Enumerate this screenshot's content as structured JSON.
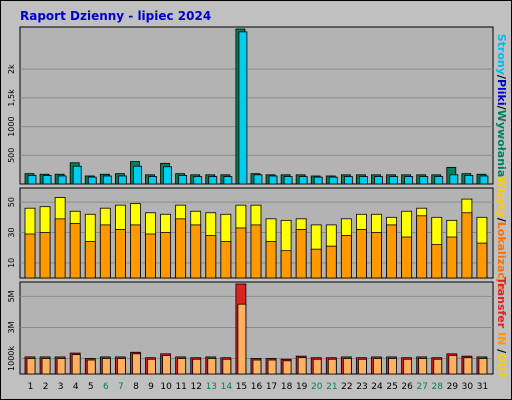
{
  "title": "Raport Dzienny -  lipiec 2024",
  "colors": {
    "background": "#C0C0C0",
    "panel": "#B3B3B3",
    "title_text": "#0000CC",
    "visits": "#00805C",
    "pages": "#00CCEE",
    "files": "#0000CC",
    "hits": "#00805C",
    "in_out": "#FFFF00",
    "sites": "#FF9900",
    "visits_lower": "#FF7000",
    "transfer": "#DD2222",
    "transfer_light": "#FFB060",
    "weekend_label": "#00805C"
  },
  "right_labels": {
    "top": [
      {
        "text": "Strony",
        "color": "#00BBEE"
      },
      {
        "text": "/",
        "color": "#000000"
      },
      {
        "text": "Pliki",
        "color": "#0000CC"
      },
      {
        "text": "/",
        "color": "#000000"
      },
      {
        "text": "Wywołania",
        "color": "#00805C"
      }
    ],
    "middle": [
      {
        "text": "Wizyty",
        "color": "#FFCC00"
      },
      {
        "text": "/",
        "color": "#000000"
      },
      {
        "text": "Lokalizacje",
        "color": "#FF7000"
      }
    ],
    "bottom": [
      {
        "text": "Transfer",
        "color": "#DD2222"
      },
      {
        "text": " IN ",
        "color": "#FF9900"
      },
      {
        "text": "/",
        "color": "#000000"
      },
      {
        "text": "OUT",
        "color": "#FFCC00"
      }
    ]
  },
  "chart_data": [
    {
      "type": "bar",
      "panel": "top",
      "categories": [
        "1",
        "2",
        "3",
        "4",
        "5",
        "6",
        "7",
        "8",
        "9",
        "10",
        "11",
        "12",
        "13",
        "14",
        "15",
        "16",
        "17",
        "18",
        "19",
        "20",
        "21",
        "22",
        "23",
        "24",
        "25",
        "26",
        "27",
        "28",
        "29",
        "30",
        "31"
      ],
      "ylim": [
        0,
        2700
      ],
      "yticks": [
        500,
        1000,
        1500,
        2000
      ],
      "ytick_labels": [
        "500",
        "1000",
        "1,5k",
        "2k"
      ],
      "series": [
        {
          "name": "Wywołania",
          "values": [
            180,
            170,
            170,
            370,
            140,
            170,
            180,
            390,
            160,
            360,
            180,
            160,
            160,
            160,
            2700,
            180,
            160,
            160,
            160,
            140,
            140,
            160,
            160,
            160,
            160,
            160,
            160,
            160,
            290,
            180,
            170
          ]
        },
        {
          "name": "Strony",
          "values": [
            150,
            150,
            140,
            310,
            120,
            140,
            140,
            310,
            130,
            300,
            150,
            130,
            130,
            130,
            2650,
            160,
            140,
            130,
            130,
            120,
            120,
            130,
            130,
            130,
            130,
            130,
            130,
            130,
            160,
            150,
            140
          ]
        }
      ]
    },
    {
      "type": "bar",
      "panel": "middle",
      "categories": [
        "1",
        "2",
        "3",
        "4",
        "5",
        "6",
        "7",
        "8",
        "9",
        "10",
        "11",
        "12",
        "13",
        "14",
        "15",
        "16",
        "17",
        "18",
        "19",
        "20",
        "21",
        "22",
        "23",
        "24",
        "25",
        "26",
        "27",
        "28",
        "29",
        "30",
        "31"
      ],
      "ylim": [
        0,
        58
      ],
      "yticks": [
        10,
        30,
        50
      ],
      "ytick_labels": [
        "10",
        "30",
        "50"
      ],
      "series": [
        {
          "name": "Wizyty",
          "values": [
            46,
            47,
            53,
            44,
            42,
            46,
            48,
            49,
            43,
            42,
            48,
            44,
            43,
            42,
            48,
            48,
            39,
            38,
            39,
            35,
            35,
            39,
            42,
            42,
            40,
            44,
            46,
            40,
            38,
            52,
            40
          ]
        },
        {
          "name": "Lokalizacje",
          "values": [
            29,
            30,
            39,
            36,
            24,
            35,
            32,
            35,
            29,
            30,
            39,
            35,
            28,
            24,
            33,
            35,
            24,
            18,
            32,
            19,
            21,
            28,
            32,
            30,
            35,
            27,
            41,
            22,
            27,
            43,
            23
          ]
        }
      ]
    },
    {
      "type": "bar",
      "panel": "bottom",
      "categories": [
        "1",
        "2",
        "3",
        "4",
        "5",
        "6",
        "7",
        "8",
        "9",
        "10",
        "11",
        "12",
        "13",
        "14",
        "15",
        "16",
        "17",
        "18",
        "19",
        "20",
        "21",
        "22",
        "23",
        "24",
        "25",
        "26",
        "27",
        "28",
        "29",
        "30",
        "31"
      ],
      "ylim": [
        0,
        5800
      ],
      "yticks": [
        1000,
        3000,
        5000
      ],
      "ytick_labels": [
        "1000k",
        "3M",
        "5M"
      ],
      "series": [
        {
          "name": "Transfer",
          "values": [
            1100,
            1100,
            1100,
            1350,
            1000,
            1100,
            1100,
            1400,
            1050,
            1300,
            1100,
            1050,
            1100,
            1050,
            5800,
            1000,
            1000,
            950,
            1150,
            1050,
            1050,
            1100,
            1050,
            1100,
            1100,
            1050,
            1100,
            1050,
            1300,
            1150,
            1100
          ]
        },
        {
          "name": "OUT",
          "values": [
            1000,
            1000,
            1000,
            1250,
            900,
            1000,
            1000,
            1300,
            950,
            1200,
            1000,
            950,
            1000,
            950,
            4500,
            900,
            900,
            850,
            1050,
            950,
            950,
            1000,
            950,
            1000,
            1000,
            950,
            1000,
            950,
            1200,
            1050,
            1000
          ]
        }
      ]
    }
  ],
  "x_label_colors": [
    "#000000",
    "#000000",
    "#000000",
    "#000000",
    "#000000",
    "#00805C",
    "#00805C",
    "#000000",
    "#000000",
    "#000000",
    "#000000",
    "#000000",
    "#00805C",
    "#00805C",
    "#000000",
    "#000000",
    "#000000",
    "#000000",
    "#000000",
    "#00805C",
    "#00805C",
    "#000000",
    "#000000",
    "#000000",
    "#000000",
    "#000000",
    "#00805C",
    "#00805C",
    "#000000",
    "#000000",
    "#000000"
  ]
}
